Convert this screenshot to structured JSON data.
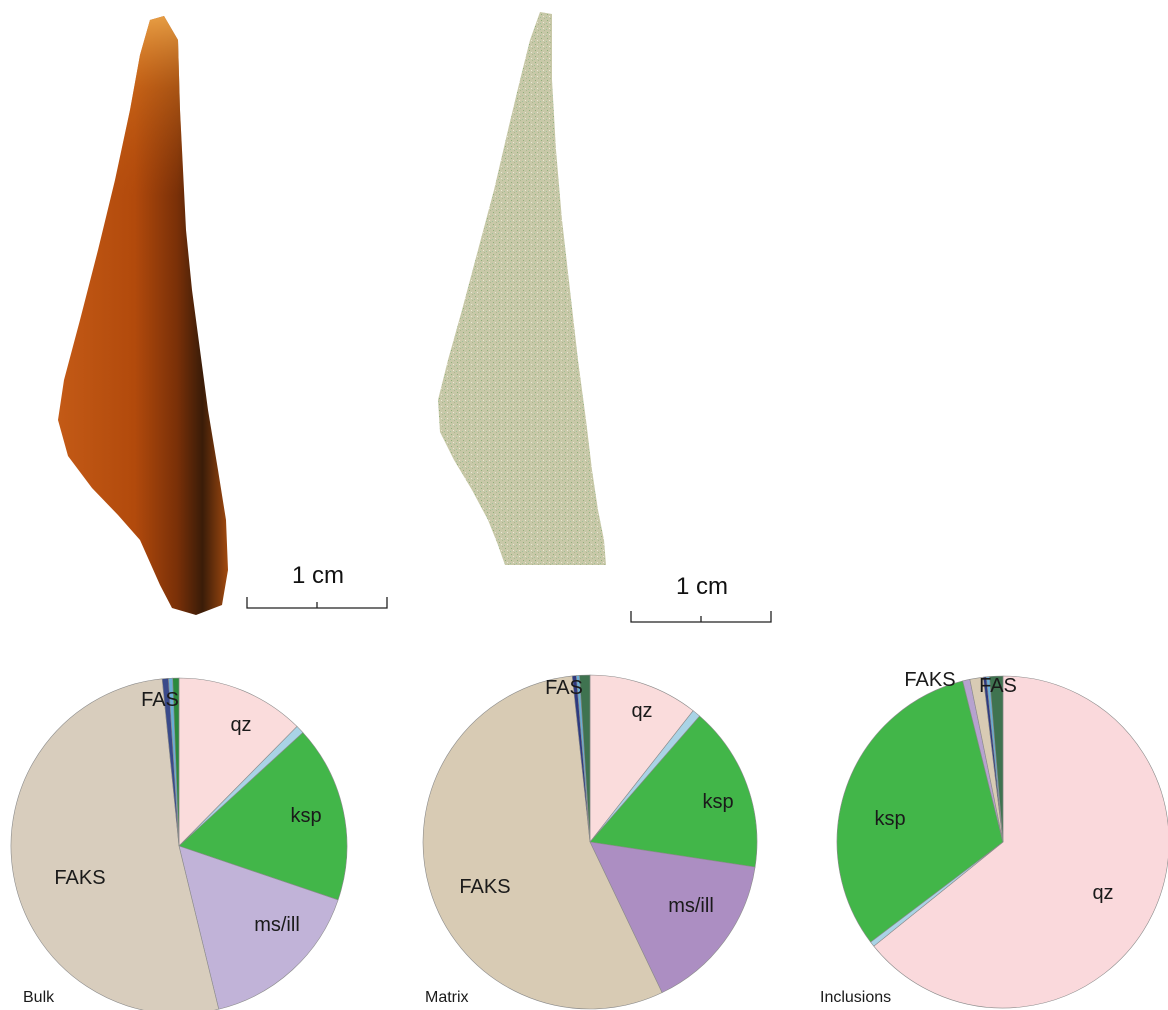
{
  "scale_bars": [
    {
      "label": "1 cm"
    },
    {
      "label": "1 cm"
    }
  ],
  "chart_data": [
    {
      "type": "pie",
      "panel_label": "Bulk",
      "slices": [
        {
          "label": "qz",
          "value": 12.4,
          "color": "#fadcdc",
          "show_label": true
        },
        {
          "label": "",
          "value": 0.8,
          "color": "#a9d3e6",
          "show_label": false
        },
        {
          "label": "ksp",
          "value": 17.0,
          "color": "#42b649",
          "show_label": true
        },
        {
          "label": "ms/ill",
          "value": 16.0,
          "color": "#c1b3d8",
          "show_label": true
        },
        {
          "label": "FAKS",
          "value": 52.2,
          "color": "#d8cdbd",
          "show_label": true
        },
        {
          "label": "",
          "value": 0.6,
          "color": "#3a4a8a",
          "show_label": false
        },
        {
          "label": "",
          "value": 0.4,
          "color": "#6aaed6",
          "show_label": false
        },
        {
          "label": "FAS",
          "value": 0.6,
          "color": "#2b8a3e",
          "show_label": true
        }
      ]
    },
    {
      "type": "pie",
      "panel_label": "Matrix",
      "slices": [
        {
          "label": "qz",
          "value": 10.6,
          "color": "#fadcdc",
          "show_label": true
        },
        {
          "label": "",
          "value": 0.8,
          "color": "#a9d3e6",
          "show_label": false
        },
        {
          "label": "ksp",
          "value": 16.0,
          "color": "#42b649",
          "show_label": true
        },
        {
          "label": "ms/ill",
          "value": 15.5,
          "color": "#ac8ec2",
          "show_label": true
        },
        {
          "label": "FAKS",
          "value": 55.4,
          "color": "#d8cbb4",
          "show_label": true
        },
        {
          "label": "",
          "value": 0.4,
          "color": "#2e3a80",
          "show_label": false
        },
        {
          "label": "",
          "value": 0.3,
          "color": "#6aaed6",
          "show_label": false
        },
        {
          "label": "FAS",
          "value": 1.0,
          "color": "#3f7350",
          "show_label": true
        }
      ]
    },
    {
      "type": "pie",
      "panel_label": "Inclusions",
      "slices": [
        {
          "label": "qz",
          "value": 64.2,
          "color": "#fad9dc",
          "show_label": true
        },
        {
          "label": "",
          "value": 0.5,
          "color": "#a9d3e6",
          "show_label": false
        },
        {
          "label": "ksp",
          "value": 31.4,
          "color": "#42b649",
          "show_label": true
        },
        {
          "label": "",
          "value": 0.7,
          "color": "#b6a2cf",
          "show_label": false
        },
        {
          "label": "FAKS",
          "value": 1.3,
          "color": "#d8cbb4",
          "show_label": true
        },
        {
          "label": "",
          "value": 0.3,
          "color": "#2e3a80",
          "show_label": false
        },
        {
          "label": "",
          "value": 0.3,
          "color": "#6aaed6",
          "show_label": false
        },
        {
          "label": "FAS",
          "value": 1.3,
          "color": "#3f7350",
          "show_label": true
        }
      ]
    }
  ]
}
